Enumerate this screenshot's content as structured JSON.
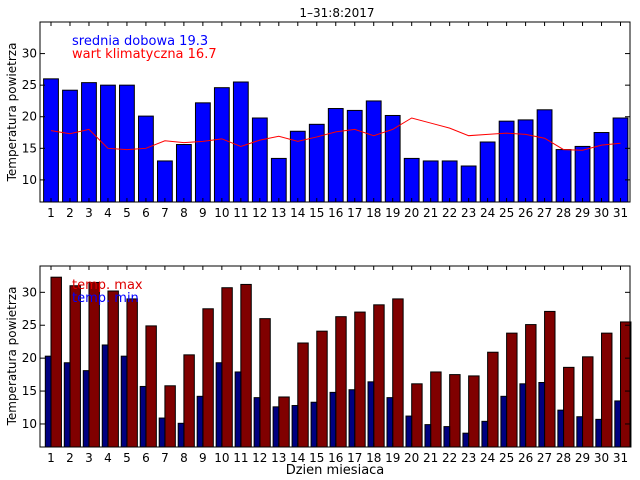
{
  "chart_data": [
    {
      "type": "bar",
      "title": "1–31:8:2017",
      "xlabel": "",
      "ylabel": "Temperatura powietrza",
      "categories": [
        "1",
        "2",
        "3",
        "4",
        "5",
        "6",
        "7",
        "8",
        "9",
        "10",
        "11",
        "12",
        "13",
        "14",
        "15",
        "16",
        "17",
        "18",
        "19",
        "20",
        "21",
        "22",
        "23",
        "24",
        "25",
        "26",
        "27",
        "28",
        "29",
        "30",
        "31"
      ],
      "ylim": [
        6.5,
        35
      ],
      "yticks": [
        10,
        15,
        20,
        25,
        30
      ],
      "legend": [
        {
          "label": "srednia dobowa 19.3",
          "color": "#0000ff"
        },
        {
          "label": "wart klimatyczna 16.7",
          "color": "#ff0000"
        }
      ],
      "series": [
        {
          "name": "srednia dobowa",
          "kind": "bar",
          "color": "#0000ff",
          "values": [
            26.0,
            24.2,
            25.4,
            25.0,
            25.0,
            20.1,
            13.0,
            15.6,
            22.2,
            24.6,
            25.5,
            19.8,
            13.4,
            17.7,
            18.8,
            21.3,
            21.0,
            22.5,
            20.2,
            13.4,
            13.0,
            13.0,
            12.2,
            16.0,
            19.3,
            19.5,
            21.1,
            14.8,
            15.3,
            17.5,
            19.8
          ]
        },
        {
          "name": "wart klimatyczna",
          "kind": "line",
          "color": "#ff0000",
          "values": [
            17.8,
            17.3,
            18.0,
            15.0,
            14.8,
            15.0,
            16.2,
            15.9,
            16.1,
            16.5,
            15.3,
            16.3,
            16.9,
            16.1,
            16.8,
            17.6,
            18.0,
            17.0,
            18.0,
            19.8,
            19.0,
            18.2,
            17.0,
            17.2,
            17.4,
            17.2,
            16.6,
            14.8,
            14.7,
            15.5,
            15.8
          ]
        }
      ]
    },
    {
      "type": "bar",
      "title": "",
      "xlabel": "Dzien miesiaca",
      "ylabel": "Temperatura powietrza",
      "categories": [
        "1",
        "2",
        "3",
        "4",
        "5",
        "6",
        "7",
        "8",
        "9",
        "10",
        "11",
        "12",
        "13",
        "14",
        "15",
        "16",
        "17",
        "18",
        "19",
        "20",
        "21",
        "22",
        "23",
        "24",
        "25",
        "26",
        "27",
        "28",
        "29",
        "30",
        "31"
      ],
      "ylim": [
        6.5,
        34
      ],
      "yticks": [
        10,
        15,
        20,
        25,
        30
      ],
      "legend": [
        {
          "label": "temp. max",
          "color": "#dd0000"
        },
        {
          "label": "temp. min",
          "color": "#0000ff"
        }
      ],
      "series": [
        {
          "name": "temp. max",
          "kind": "bar",
          "color": "#800000",
          "values": [
            32.3,
            31.0,
            31.5,
            30.2,
            29.0,
            24.9,
            15.8,
            20.5,
            27.5,
            30.7,
            31.2,
            26.0,
            14.1,
            22.3,
            24.1,
            26.3,
            27.0,
            28.1,
            29.0,
            16.1,
            17.9,
            17.5,
            17.3,
            20.9,
            23.8,
            25.1,
            27.1,
            18.6,
            20.2,
            23.8,
            25.5
          ]
        },
        {
          "name": "temp. min",
          "kind": "bar",
          "color": "#000080",
          "values": [
            20.3,
            19.3,
            18.1,
            22.0,
            20.3,
            15.7,
            10.9,
            10.1,
            14.2,
            19.3,
            17.9,
            14.0,
            12.6,
            12.8,
            13.3,
            14.8,
            15.2,
            16.4,
            14.0,
            11.2,
            9.9,
            9.6,
            8.6,
            10.4,
            14.2,
            16.1,
            16.3,
            12.1,
            11.1,
            10.7,
            13.5
          ]
        }
      ]
    }
  ]
}
